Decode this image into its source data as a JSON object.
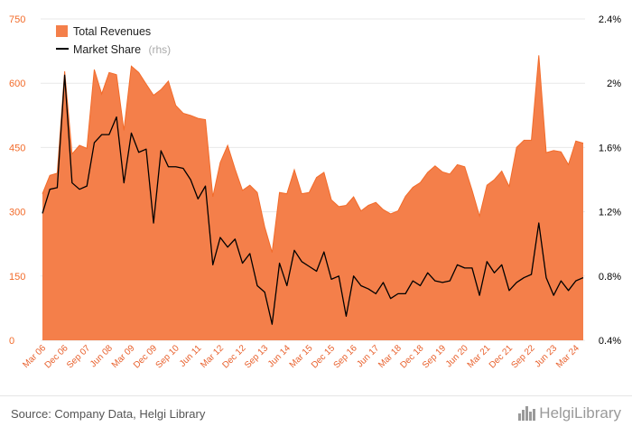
{
  "chart_data": {
    "type": "area+line",
    "legend_position": "top-left",
    "legend": {
      "revenues_label": "Total Revenues",
      "share_label": "Market Share",
      "share_suffix": "(rhs)"
    },
    "left_axis": {
      "ticks": [
        "0",
        "150",
        "300",
        "450",
        "600",
        "750"
      ],
      "range": [
        0,
        750
      ]
    },
    "right_axis": {
      "ticks": [
        "0.4%",
        "0.8%",
        "1.2%",
        "1.6%",
        "2%",
        "2.4%"
      ],
      "range": [
        0.4,
        2.4
      ]
    },
    "x_tick_labels": [
      "Mar 06",
      "Dec 06",
      "Sep 07",
      "Jun 08",
      "Mar 09",
      "Dec 09",
      "Sep 10",
      "Jun 11",
      "Mar 12",
      "Dec 12",
      "Sep 13",
      "Jun 14",
      "Mar 15",
      "Dec 15",
      "Sep 16",
      "Jun 17",
      "Mar 18",
      "Dec 18",
      "Sep 19",
      "Jun 20",
      "Mar 21",
      "Dec 21",
      "Sep 22",
      "Jun 23",
      "Mar 24"
    ],
    "x": [
      "Mar 06",
      "Jun 06",
      "Sep 06",
      "Dec 06",
      "Mar 07",
      "Jun 07",
      "Sep 07",
      "Dec 07",
      "Mar 08",
      "Jun 08",
      "Sep 08",
      "Dec 08",
      "Mar 09",
      "Jun 09",
      "Sep 09",
      "Dec 09",
      "Mar 10",
      "Jun 10",
      "Sep 10",
      "Dec 10",
      "Mar 11",
      "Jun 11",
      "Sep 11",
      "Dec 11",
      "Mar 12",
      "Jun 12",
      "Sep 12",
      "Dec 12",
      "Mar 13",
      "Jun 13",
      "Sep 13",
      "Dec 13",
      "Mar 14",
      "Jun 14",
      "Sep 14",
      "Dec 14",
      "Mar 15",
      "Jun 15",
      "Sep 15",
      "Dec 15",
      "Mar 16",
      "Jun 16",
      "Sep 16",
      "Dec 16",
      "Mar 17",
      "Jun 17",
      "Sep 17",
      "Dec 17",
      "Mar 18",
      "Jun 18",
      "Sep 18",
      "Dec 18",
      "Mar 19",
      "Jun 19",
      "Sep 19",
      "Dec 19",
      "Mar 20",
      "Jun 20",
      "Sep 20",
      "Dec 20",
      "Mar 21",
      "Jun 21",
      "Sep 21",
      "Dec 21",
      "Mar 22",
      "Jun 22",
      "Sep 22",
      "Dec 22",
      "Mar 23",
      "Jun 23",
      "Sep 23",
      "Dec 23",
      "Mar 24",
      "Jun 24"
    ],
    "series": [
      {
        "name": "Total Revenues",
        "axis": "left",
        "color": "#f47f4a",
        "values": [
          342,
          385,
          390,
          628,
          435,
          455,
          448,
          632,
          575,
          625,
          620,
          490,
          640,
          625,
          598,
          572,
          585,
          605,
          548,
          530,
          525,
          518,
          515,
          335,
          415,
          455,
          400,
          350,
          362,
          345,
          265,
          205,
          345,
          342,
          398,
          342,
          345,
          380,
          392,
          328,
          312,
          315,
          335,
          302,
          315,
          322,
          305,
          295,
          302,
          336,
          357,
          368,
          392,
          407,
          393,
          388,
          410,
          405,
          350,
          290,
          362,
          375,
          395,
          359,
          450,
          467,
          467,
          665,
          438,
          443,
          440,
          410,
          465,
          460
        ],
        "color_line": "#f26b2a"
      },
      {
        "name": "Market Share",
        "axis": "right",
        "color": "#000000",
        "values": [
          1.19,
          1.34,
          1.35,
          2.05,
          1.38,
          1.34,
          1.36,
          1.63,
          1.68,
          1.68,
          1.79,
          1.38,
          1.69,
          1.57,
          1.59,
          1.13,
          1.58,
          1.48,
          1.48,
          1.47,
          1.4,
          1.28,
          1.36,
          0.87,
          1.04,
          0.98,
          1.03,
          0.88,
          0.94,
          0.74,
          0.7,
          0.5,
          0.88,
          0.74,
          0.96,
          0.89,
          0.86,
          0.83,
          0.95,
          0.78,
          0.8,
          0.55,
          0.8,
          0.74,
          0.72,
          0.69,
          0.76,
          0.66,
          0.69,
          0.69,
          0.77,
          0.74,
          0.82,
          0.77,
          0.76,
          0.77,
          0.87,
          0.85,
          0.85,
          0.68,
          0.89,
          0.82,
          0.87,
          0.71,
          0.76,
          0.79,
          0.81,
          1.13,
          0.79,
          0.68,
          0.77,
          0.71,
          0.77,
          0.79
        ]
      }
    ]
  },
  "footer": {
    "source": "Source: Company Data, Helgi Library",
    "logo_text": "HelgiLibrary"
  }
}
